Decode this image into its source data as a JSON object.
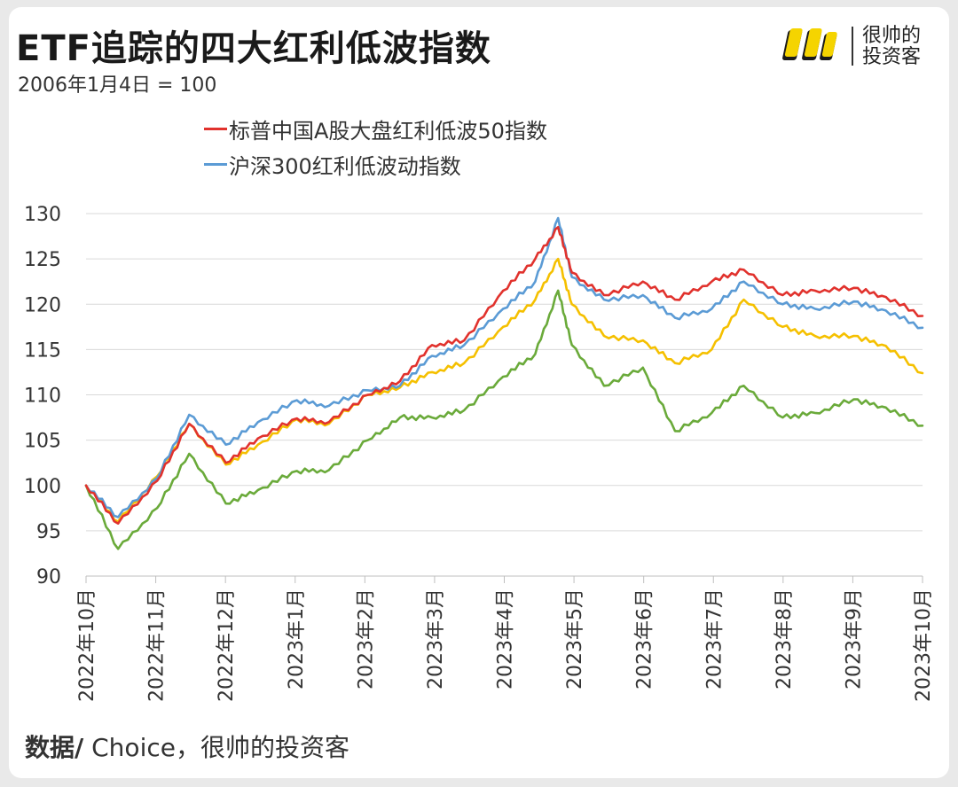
{
  "header": {
    "title": "ETF追踪的四大红利低波指数",
    "subtitle": "2006年1月4日 = 100"
  },
  "logo": {
    "line1": "很帅的",
    "line2": "投资客"
  },
  "footer": {
    "source_label": "数据/",
    "source_text": " Choice，很帅的投资客"
  },
  "colors": {
    "red": "#e1322d",
    "blue": "#5b9bd5",
    "yellow": "#f5c000",
    "green": "#6aaa3a",
    "grid": "#d9d9d9",
    "axis": "#bfbfbf"
  },
  "chart_data": {
    "type": "line",
    "title": "ETF追踪的四大红利低波指数",
    "subtitle": "2006年1月4日 = 100",
    "ylim": [
      90,
      130
    ],
    "yticks": [
      90,
      95,
      100,
      105,
      110,
      115,
      120,
      125,
      130
    ],
    "grid": true,
    "legend_position": "top",
    "x_ticks": [
      "2022年10月",
      "2022年11月",
      "2022年12月",
      "2023年1月",
      "2023年2月",
      "2023年3月",
      "2023年4月",
      "2023年5月",
      "2023年6月",
      "2023年7月",
      "2023年8月",
      "2023年9月",
      "2023年10月"
    ],
    "x": [
      "2022-10-01",
      "2022-10-15",
      "2022-11-01",
      "2022-11-15",
      "2022-12-01",
      "2022-12-15",
      "2023-01-01",
      "2023-01-15",
      "2023-02-01",
      "2023-02-15",
      "2023-03-01",
      "2023-03-15",
      "2023-04-01",
      "2023-04-15",
      "2023-04-25",
      "2023-05-01",
      "2023-05-15",
      "2023-06-01",
      "2023-06-15",
      "2023-07-01",
      "2023-07-15",
      "2023-08-01",
      "2023-08-15",
      "2023-09-01",
      "2023-09-15",
      "2023-10-01"
    ],
    "series": [
      {
        "name": "标普中国A股大盘红利低波50指数",
        "color": "#e1322d",
        "values": [
          100,
          95.8,
          100.5,
          106.8,
          102.5,
          105.2,
          107.4,
          107.0,
          110.0,
          111.5,
          115.5,
          116.0,
          121.5,
          125.0,
          128.5,
          123.5,
          121.0,
          122.5,
          120.5,
          122.5,
          123.8,
          121.0,
          121.5,
          121.8,
          120.8,
          118.7
        ]
      },
      {
        "name": "沪深300红利低波动指数",
        "color": "#5b9bd5",
        "values": [
          100,
          96.5,
          100.8,
          107.8,
          104.5,
          107.0,
          109.4,
          108.8,
          110.5,
          111.0,
          114.3,
          115.5,
          119.5,
          122.5,
          129.5,
          123.0,
          120.5,
          121.0,
          118.5,
          119.5,
          122.5,
          120.0,
          119.5,
          120.3,
          119.3,
          117.4
        ]
      },
      {
        "color": "#f5c000",
        "values": [
          100,
          96.0,
          101.0,
          106.8,
          102.3,
          104.5,
          107.3,
          106.8,
          110.0,
          110.8,
          112.5,
          113.5,
          117.5,
          120.5,
          125.0,
          120.0,
          116.5,
          116.0,
          113.5,
          115.0,
          120.5,
          117.5,
          116.5,
          116.5,
          115.4,
          112.4
        ]
      },
      {
        "color": "#6aaa3a",
        "values": [
          100,
          93.0,
          97.5,
          103.5,
          98.0,
          99.5,
          101.6,
          101.7,
          105.0,
          107.5,
          107.5,
          108.3,
          112.0,
          114.5,
          121.5,
          115.5,
          111.0,
          113.0,
          106.0,
          108.0,
          111.0,
          107.5,
          108.0,
          109.5,
          108.6,
          106.6
        ]
      }
    ]
  }
}
